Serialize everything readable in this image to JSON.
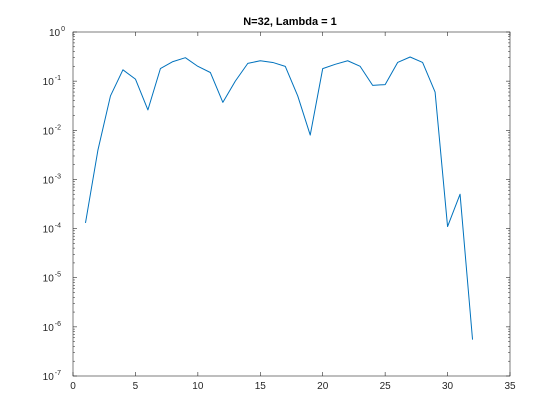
{
  "chart_data": {
    "type": "line",
    "title": "N=32, Lambda = 1",
    "xlabel": "",
    "ylabel": "",
    "xlim": [
      0,
      35
    ],
    "ylim": [
      1e-07,
      1
    ],
    "yscale": "log",
    "grid": false,
    "legend": "none",
    "x_ticks": [
      0,
      5,
      10,
      15,
      20,
      25,
      30,
      35
    ],
    "y_tick_exponents": [
      -7,
      -6,
      -5,
      -4,
      -3,
      -2,
      -1,
      0
    ],
    "y_tick_base": "10",
    "series": [
      {
        "color": "#0072BD",
        "x": [
          1,
          2,
          3,
          4,
          5,
          6,
          7,
          8,
          9,
          10,
          11,
          12,
          13,
          14,
          15,
          16,
          17,
          18,
          19,
          20,
          21,
          22,
          23,
          24,
          25,
          26,
          27,
          28,
          29,
          30,
          31,
          32
        ],
        "y": [
          0.00013,
          0.004,
          0.05,
          0.17,
          0.11,
          0.026,
          0.18,
          0.25,
          0.3,
          0.2,
          0.15,
          0.037,
          0.1,
          0.23,
          0.26,
          0.24,
          0.2,
          0.05,
          0.008,
          0.18,
          0.22,
          0.26,
          0.2,
          0.082,
          0.085,
          0.24,
          0.31,
          0.24,
          0.06,
          0.00011,
          0.0005,
          5.5e-07
        ]
      }
    ]
  }
}
